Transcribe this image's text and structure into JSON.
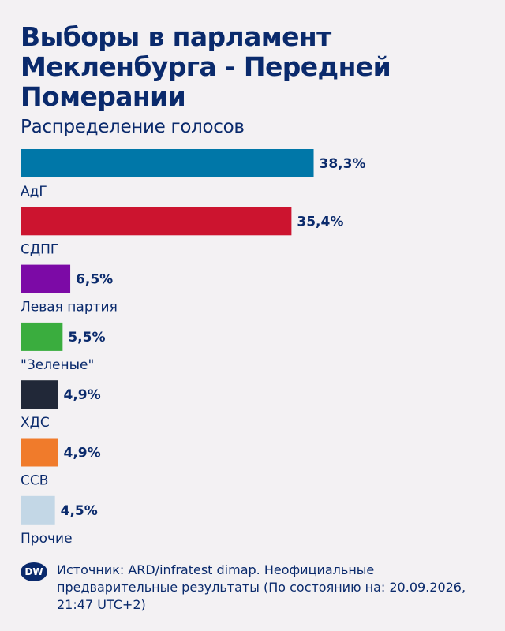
{
  "header": {
    "title": "Выборы в парламент Мекленбурга - Передней Померании",
    "subtitle": "Распределение голосов"
  },
  "chart_data": {
    "type": "bar",
    "orientation": "horizontal",
    "categories": [
      "АдГ",
      "СДПГ",
      "Левая партия",
      "\"Зеленые\"",
      "ХДС",
      "ССВ",
      "Прочие"
    ],
    "values": [
      38.3,
      35.4,
      6.5,
      5.5,
      4.9,
      4.9,
      4.5
    ],
    "value_labels": [
      "38,3%",
      "35,4%",
      "6,5%",
      "5,5%",
      "4,9%",
      "4,9%",
      "4,5%"
    ],
    "colors": [
      "#0077a8",
      "#cc142f",
      "#7c0aa6",
      "#3aad3e",
      "#212838",
      "#f07b2b",
      "#c3d7e6"
    ],
    "unit": "%",
    "grid": false
  },
  "footer": {
    "logo_text": "DW",
    "source": "Источник: ARD/infratest dimap. Неофициальные предварительные результаты (По состоянию на: 20.09.2026, 21:47 UTC+2)"
  }
}
